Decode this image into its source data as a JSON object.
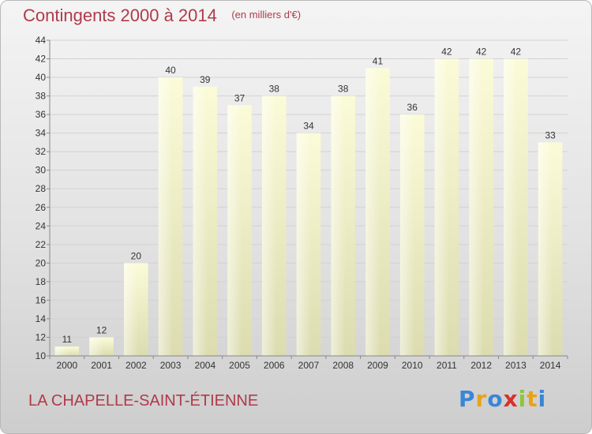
{
  "title": "Contingents 2000 à 2014",
  "unit": "(en milliers d'€)",
  "commune": "LA CHAPELLE-SAINT-ÉTIENNE",
  "logo": {
    "letters": [
      "P",
      "r",
      "o",
      "x",
      "i",
      "t",
      "i"
    ],
    "colors": [
      "#3a86d6",
      "#e8a317",
      "#3a86d6",
      "#d9302c",
      "#8cc63e",
      "#e8a317",
      "#3a86d6"
    ]
  },
  "chart_data": {
    "type": "bar",
    "title": "Contingents 2000 à 2014",
    "unit_label": "(en milliers d'€)",
    "categories": [
      "2000",
      "2001",
      "2002",
      "2003",
      "2004",
      "2005",
      "2006",
      "2007",
      "2008",
      "2009",
      "2010",
      "2011",
      "2012",
      "2013",
      "2014"
    ],
    "values": [
      11,
      12,
      20,
      40,
      39,
      37,
      38,
      34,
      38,
      41,
      36,
      42,
      42,
      42,
      33
    ],
    "ylim": [
      10,
      44
    ],
    "yticks": [
      10,
      12,
      14,
      16,
      18,
      20,
      22,
      24,
      26,
      28,
      30,
      32,
      34,
      36,
      38,
      40,
      42,
      44
    ],
    "grid": true,
    "bar_color": "#f3f3c4"
  }
}
